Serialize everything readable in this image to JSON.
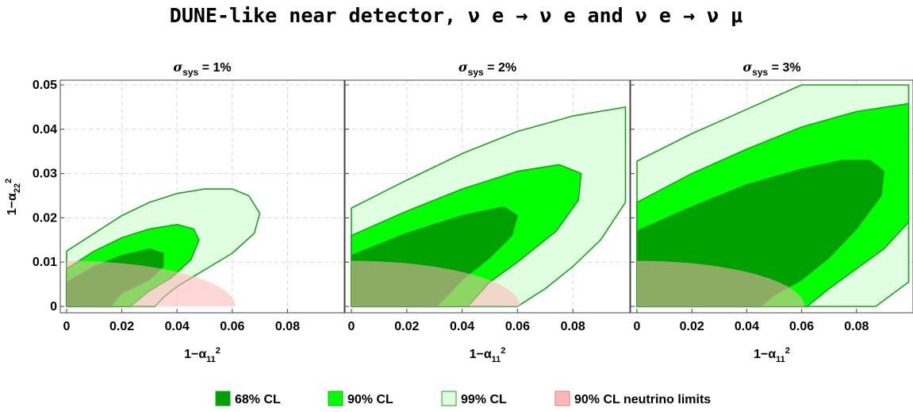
{
  "title": "DUNE-like near detector, ν e → ν e and ν e → ν μ",
  "colors": {
    "cl68": "#00a000",
    "cl90": "#00ff00",
    "cl99": "#e0ffe0",
    "nu90": "#ffb6b6",
    "contour": "#1ea01e"
  },
  "legend": [
    {
      "key": "cl68",
      "label": "68% CL"
    },
    {
      "key": "cl90",
      "label": "90% CL"
    },
    {
      "key": "cl99",
      "label": "99% CL"
    },
    {
      "key": "nu90",
      "label": "90% CL neutrino limits"
    }
  ],
  "chart_data": [
    {
      "type": "area",
      "panel_title_sym": "σ",
      "panel_title_sub": "sys",
      "panel_title_val": " = 1%",
      "xlabel_main": "1−α",
      "xlabel_sub": "11",
      "xlabel_sup": "2",
      "ylabel_main": "1−α",
      "ylabel_sub": "22",
      "ylabel_sup": "2",
      "xlim": [
        0,
        0.1
      ],
      "ylim": [
        0,
        0.05
      ],
      "xticks": [
        "0",
        "0.02",
        "0.04",
        "0.06",
        "0.08"
      ],
      "yticks": [
        "0",
        "0.01",
        "0.02",
        "0.03",
        "0.04",
        "0.05"
      ],
      "neutrino_limit": {
        "x_max": 0.061,
        "y_max": 0.0103
      },
      "regions": [
        {
          "level": "cl99",
          "points": [
            [
              0,
              0
            ],
            [
              0,
              0.0125
            ],
            [
              0.01,
              0.0165
            ],
            [
              0.02,
              0.0205
            ],
            [
              0.03,
              0.0235
            ],
            [
              0.04,
              0.0255
            ],
            [
              0.05,
              0.0265
            ],
            [
              0.06,
              0.0265
            ],
            [
              0.066,
              0.025
            ],
            [
              0.07,
              0.021
            ],
            [
              0.068,
              0.0165
            ],
            [
              0.06,
              0.012
            ],
            [
              0.048,
              0.0075
            ],
            [
              0.04,
              0.0045
            ],
            [
              0.035,
              0.002
            ],
            [
              0.032,
              0
            ]
          ]
        },
        {
          "level": "cl90",
          "points": [
            [
              0,
              0
            ],
            [
              0,
              0.0085
            ],
            [
              0.01,
              0.0125
            ],
            [
              0.02,
              0.0155
            ],
            [
              0.03,
              0.0175
            ],
            [
              0.04,
              0.0185
            ],
            [
              0.046,
              0.0175
            ],
            [
              0.048,
              0.015
            ],
            [
              0.045,
              0.0105
            ],
            [
              0.038,
              0.0065
            ],
            [
              0.03,
              0.0035
            ],
            [
              0.025,
              0.001
            ],
            [
              0.023,
              0
            ]
          ]
        },
        {
          "level": "cl68",
          "points": [
            [
              0,
              0
            ],
            [
              0,
              0.0055
            ],
            [
              0.01,
              0.009
            ],
            [
              0.02,
              0.0115
            ],
            [
              0.03,
              0.013
            ],
            [
              0.035,
              0.012
            ],
            [
              0.035,
              0.009
            ],
            [
              0.03,
              0.006
            ],
            [
              0.02,
              0.003
            ],
            [
              0.016,
              0
            ]
          ]
        }
      ]
    },
    {
      "type": "area",
      "panel_title_sym": "σ",
      "panel_title_sub": "sys",
      "panel_title_val": " = 2%",
      "xlabel_main": "1−α",
      "xlabel_sub": "11",
      "xlabel_sup": "2",
      "xlim": [
        0,
        0.1
      ],
      "ylim": [
        0,
        0.05
      ],
      "xticks": [
        "0",
        "0.02",
        "0.04",
        "0.06",
        "0.08"
      ],
      "neutrino_limit": {
        "x_max": 0.061,
        "y_max": 0.0103
      },
      "regions": [
        {
          "level": "cl99",
          "points": [
            [
              0,
              0
            ],
            [
              0,
              0.0222
            ],
            [
              0.02,
              0.0285
            ],
            [
              0.04,
              0.0345
            ],
            [
              0.06,
              0.0395
            ],
            [
              0.08,
              0.043
            ],
            [
              0.099,
              0.045
            ],
            [
              0.099,
              0.0235
            ],
            [
              0.09,
              0.015
            ],
            [
              0.08,
              0.009
            ],
            [
              0.07,
              0.004
            ],
            [
              0.06,
              0
            ]
          ]
        },
        {
          "level": "cl90",
          "points": [
            [
              0,
              0
            ],
            [
              0,
              0.016
            ],
            [
              0.02,
              0.0215
            ],
            [
              0.04,
              0.0265
            ],
            [
              0.06,
              0.0305
            ],
            [
              0.075,
              0.032
            ],
            [
              0.083,
              0.03
            ],
            [
              0.082,
              0.024
            ],
            [
              0.074,
              0.017
            ],
            [
              0.06,
              0.01
            ],
            [
              0.05,
              0.0055
            ],
            [
              0.042,
              0
            ]
          ]
        },
        {
          "level": "cl68",
          "points": [
            [
              0,
              0
            ],
            [
              0,
              0.0115
            ],
            [
              0.02,
              0.0165
            ],
            [
              0.04,
              0.0205
            ],
            [
              0.055,
              0.0225
            ],
            [
              0.06,
              0.0205
            ],
            [
              0.058,
              0.016
            ],
            [
              0.05,
              0.011
            ],
            [
              0.04,
              0.006
            ],
            [
              0.031,
              0
            ]
          ]
        }
      ]
    },
    {
      "type": "area",
      "panel_title_sym": "σ",
      "panel_title_sub": "sys",
      "panel_title_val": " = 3%",
      "xlabel_main": "1−α",
      "xlabel_sub": "11",
      "xlabel_sup": "2",
      "xlim": [
        0,
        0.1
      ],
      "ylim": [
        0,
        0.05
      ],
      "xticks": [
        "0",
        "0.02",
        "0.04",
        "0.06",
        "0.08"
      ],
      "neutrino_limit": {
        "x_max": 0.061,
        "y_max": 0.0103
      },
      "regions": [
        {
          "level": "cl99",
          "points": [
            [
              0,
              0
            ],
            [
              0,
              0.0328
            ],
            [
              0.02,
              0.039
            ],
            [
              0.04,
              0.0445
            ],
            [
              0.06,
              0.05
            ],
            [
              0.099,
              0.05
            ],
            [
              0.099,
              0.0055
            ],
            [
              0.087,
              0
            ]
          ]
        },
        {
          "level": "cl90",
          "points": [
            [
              0,
              0
            ],
            [
              0,
              0.0235
            ],
            [
              0.02,
              0.03
            ],
            [
              0.04,
              0.0355
            ],
            [
              0.06,
              0.0405
            ],
            [
              0.08,
              0.044
            ],
            [
              0.099,
              0.0458
            ],
            [
              0.099,
              0.019
            ],
            [
              0.09,
              0.013
            ],
            [
              0.08,
              0.0085
            ],
            [
              0.07,
              0.004
            ],
            [
              0.062,
              0
            ]
          ]
        },
        {
          "level": "cl68",
          "points": [
            [
              0,
              0
            ],
            [
              0,
              0.017
            ],
            [
              0.02,
              0.0225
            ],
            [
              0.04,
              0.0275
            ],
            [
              0.06,
              0.031
            ],
            [
              0.075,
              0.033
            ],
            [
              0.085,
              0.033
            ],
            [
              0.09,
              0.0305
            ],
            [
              0.089,
              0.025
            ],
            [
              0.08,
              0.0175
            ],
            [
              0.07,
              0.011
            ],
            [
              0.06,
              0.006
            ],
            [
              0.05,
              0.0025
            ],
            [
              0.045,
              0
            ]
          ]
        }
      ]
    }
  ]
}
